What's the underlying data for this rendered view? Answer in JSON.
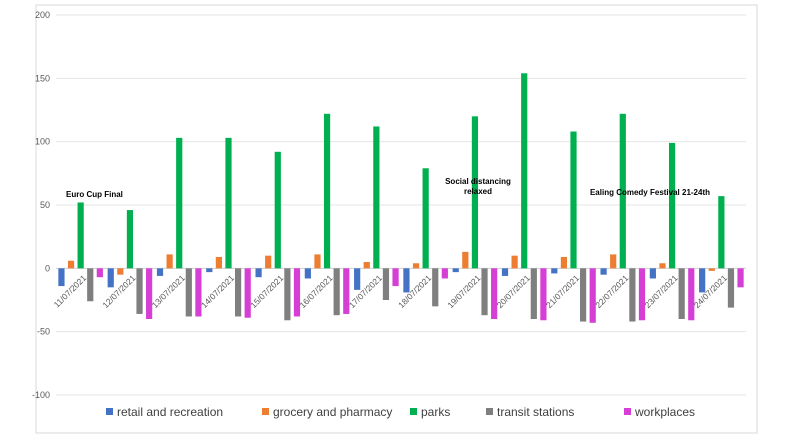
{
  "chart_data": {
    "type": "bar",
    "categories": [
      "11/07/2021",
      "12/07/2021",
      "13/07/2021",
      "14/07/2021",
      "15/07/2021",
      "16/07/2021",
      "17/07/2021",
      "18/07/2021",
      "19/07/2021",
      "20/07/2021",
      "21/07/2021",
      "22/07/2021",
      "23/07/2021",
      "24/07/2021"
    ],
    "series": [
      {
        "name": "retail and recreation",
        "color": "#4472c4",
        "values": [
          -14,
          -15,
          -6,
          -3,
          -7,
          -8,
          -17,
          -19,
          -3,
          -6,
          -4,
          -5,
          -8,
          -19
        ]
      },
      {
        "name": "grocery and pharmacy",
        "color": "#ed7d31",
        "values": [
          6,
          -5,
          11,
          9,
          10,
          11,
          5,
          4,
          13,
          10,
          9,
          11,
          4,
          -2
        ]
      },
      {
        "name": "parks",
        "color": "#00b050",
        "values": [
          52,
          46,
          103,
          103,
          92,
          122,
          112,
          79,
          120,
          154,
          108,
          122,
          99,
          57
        ]
      },
      {
        "name": "transit stations",
        "color": "#7f7f7f",
        "values": [
          -26,
          -36,
          -38,
          -38,
          -41,
          -37,
          -25,
          -30,
          -37,
          -40,
          -42,
          -42,
          -40,
          -31
        ]
      },
      {
        "name": "workplaces",
        "color": "#d63fd6",
        "values": [
          -7,
          -40,
          -38,
          -39,
          -38,
          -36,
          -14,
          -8,
          -40,
          -41,
          -43,
          -41,
          -41,
          -15
        ]
      }
    ],
    "yticks": [
      200,
      150,
      100,
      50,
      0,
      -50,
      -100
    ],
    "ylim": [
      -100,
      200
    ],
    "grid": true,
    "legend": "bottom",
    "annotations": [
      {
        "category": "11/07/2021",
        "lines": [
          "Euro Cup Final"
        ]
      },
      {
        "category": "19/07/2021",
        "lines": [
          "Social distancing",
          "relaxed"
        ]
      },
      {
        "category": "22/07/2021",
        "lines": [
          "Ealing Comedy Festival 21-24th"
        ]
      }
    ]
  }
}
